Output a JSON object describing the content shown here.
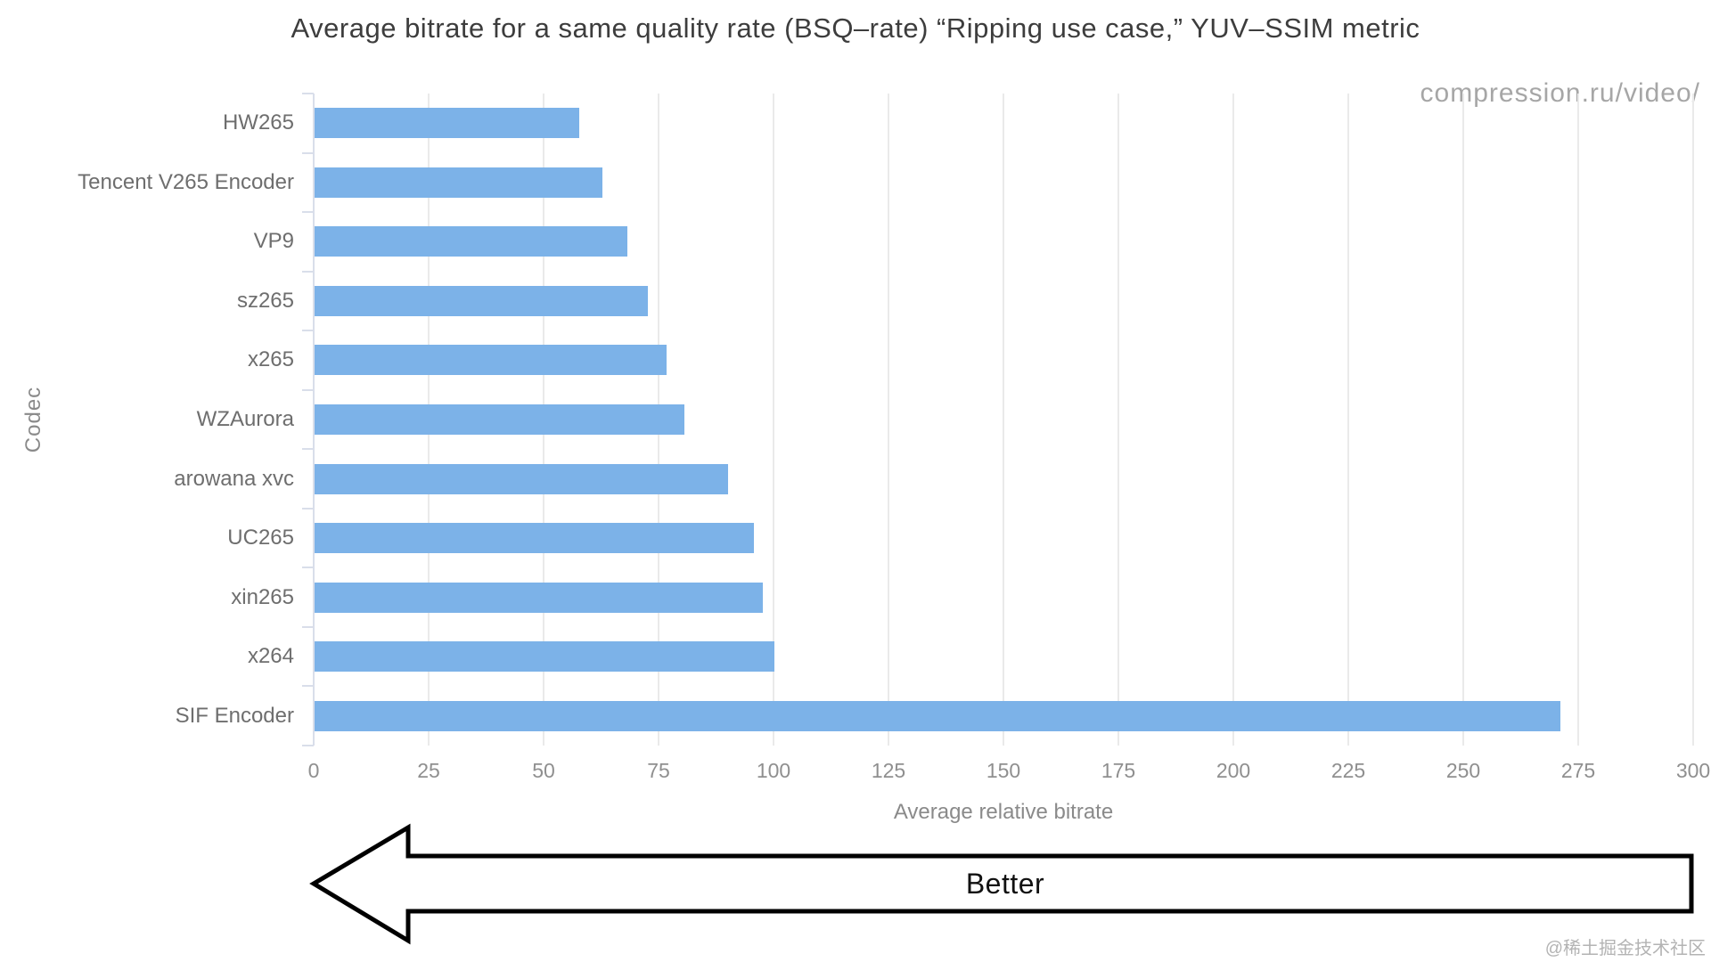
{
  "page": {
    "watermark": "compression.ru/video/",
    "credit": "@稀土掘金技术社区"
  },
  "chart_data": {
    "type": "bar",
    "orientation": "horizontal",
    "title": "Average bitrate for a same quality rate (BSQ–rate) “Ripping use case,” YUV–SSIM metric",
    "xlabel": "Average relative bitrate",
    "ylabel": "Codec",
    "categories": [
      "HW265",
      "Tencent V265 Encoder",
      "VP9",
      "sz265",
      "x265",
      "WZAurora",
      "arowana xvc",
      "UC265",
      "xin265",
      "x264",
      "SIF Encoder"
    ],
    "values": [
      57.5,
      62.5,
      68,
      72.5,
      76.5,
      80.5,
      90,
      95.5,
      97.5,
      100,
      271
    ],
    "xlim": [
      0,
      300
    ],
    "xticks": [
      0,
      25,
      50,
      75,
      100,
      125,
      150,
      175,
      200,
      225,
      250,
      275,
      300
    ],
    "grid": "vertical",
    "legend": "none",
    "bar_color": "#7cb2e8",
    "annotations": {
      "better_arrow": {
        "label": "Better",
        "direction": "left"
      }
    }
  }
}
